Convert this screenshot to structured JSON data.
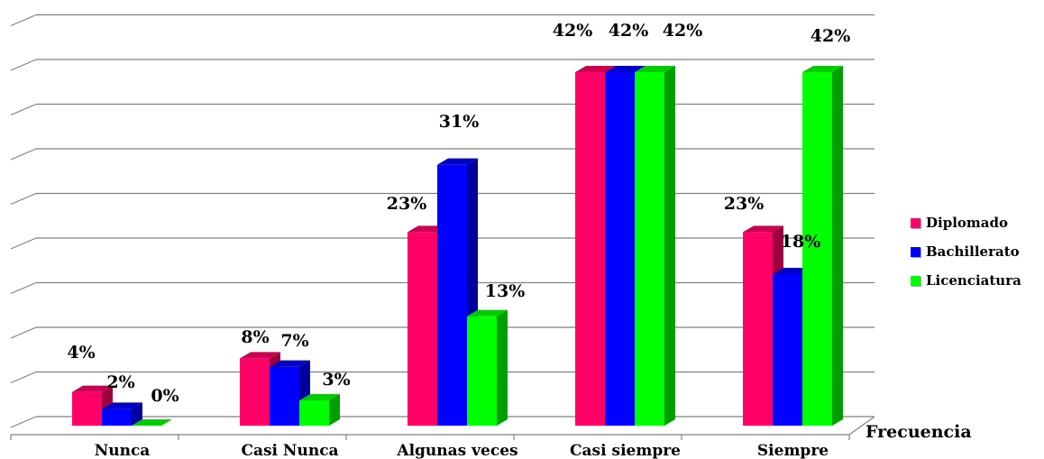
{
  "chart_data": {
    "type": "bar",
    "categories": [
      "Nunca",
      "Casi Nunca",
      "Algunas veces",
      "Casi siempre",
      "Siempre"
    ],
    "series": [
      {
        "name": "Diplomado",
        "color": "#ff0066",
        "values": [
          4,
          8,
          23,
          42,
          23
        ],
        "labels": [
          "4%",
          "8%",
          "23%",
          "42%",
          "23%"
        ]
      },
      {
        "name": "Bachillerato",
        "color": "#0000ff",
        "values": [
          2,
          7,
          31,
          42,
          18
        ],
        "labels": [
          "2%",
          "7%",
          "31%",
          "42%",
          "18%"
        ]
      },
      {
        "name": "Licenciatura",
        "color": "#00ff00",
        "values": [
          0,
          3,
          13,
          42,
          42
        ],
        "labels": [
          "0%",
          "3%",
          "13%",
          "42%",
          "42%"
        ]
      }
    ],
    "xlabel": "Frecuencia",
    "ylabel": "",
    "ylim": [
      0,
      45
    ],
    "grid": true,
    "legend_position": "right",
    "style": "3d-clustered"
  }
}
